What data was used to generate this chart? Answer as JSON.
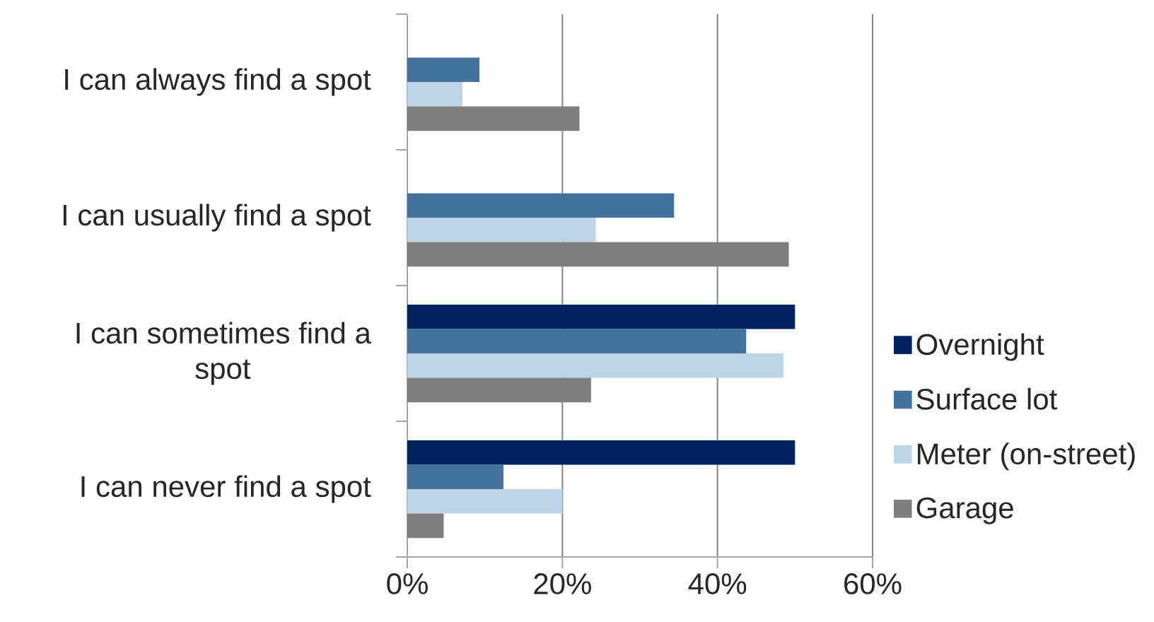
{
  "chart_data": {
    "type": "bar",
    "orientation": "horizontal",
    "categories": [
      "I can always find a spot",
      "I can usually find a spot",
      "I can sometimes find a spot",
      "I can never find a spot"
    ],
    "series": [
      {
        "name": "Overnight",
        "color": "#002060",
        "values": [
          null,
          null,
          50.0,
          50.0
        ]
      },
      {
        "name": "Surface lot",
        "color": "#43729e",
        "values": [
          9.3,
          34.4,
          43.7,
          12.4
        ]
      },
      {
        "name": "Meter (on-street)",
        "color": "#bdd3e6",
        "values": [
          7.1,
          24.3,
          48.5,
          20.0
        ]
      },
      {
        "name": "Garage",
        "color": "#7f7f7f",
        "values": [
          22.2,
          49.2,
          23.7,
          4.7
        ]
      }
    ],
    "xlim": [
      0,
      60
    ],
    "xticks": [
      {
        "value": 0,
        "label": "0%"
      },
      {
        "value": 20,
        "label": "20%"
      },
      {
        "value": 40,
        "label": "40%"
      },
      {
        "value": 60,
        "label": "60%"
      }
    ],
    "grid": "x",
    "legend": "right"
  }
}
